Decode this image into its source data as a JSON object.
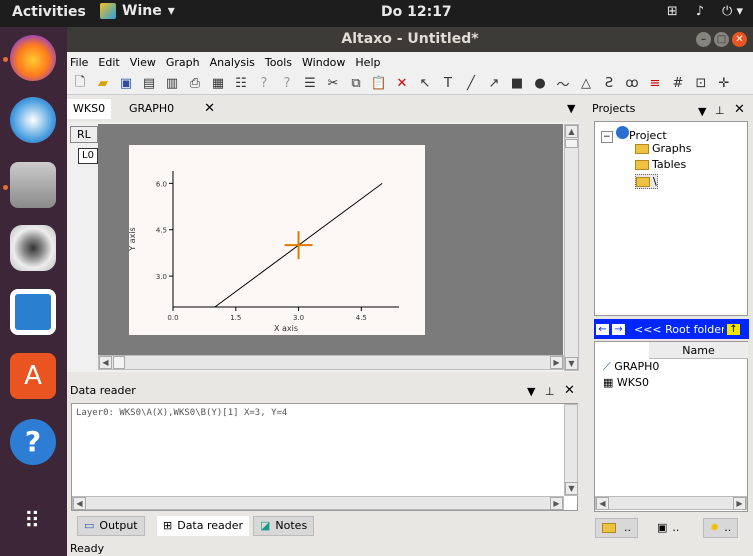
{
  "topbar": {
    "activities": "Activities",
    "app_name": "Wine",
    "clock": "Do 12:17"
  },
  "window": {
    "title": "Altaxo - Untitled*"
  },
  "menu": [
    "File",
    "Edit",
    "View",
    "Graph",
    "Analysis",
    "Tools",
    "Window",
    "Help"
  ],
  "doc_tabs": {
    "tab1": "WKS0",
    "tab2": "GRAPH0",
    "close": "✕"
  },
  "layer_buttons": {
    "rl": "RL",
    "l0": "L0"
  },
  "chart_data": {
    "type": "line",
    "series": [
      {
        "x": [
          1.0,
          5.0
        ],
        "y": [
          2.0,
          6.0
        ]
      }
    ],
    "xlabel": "X axis",
    "ylabel": "Y axis",
    "xticks": [
      "0.0",
      "1.5",
      "3.0",
      "4.5"
    ],
    "yticks": [
      "6.0",
      "4.5",
      "3.0"
    ],
    "xlim": [
      0,
      5.4
    ],
    "ylim": [
      2,
      6.4
    ],
    "cursor": {
      "x": 3,
      "y": 4
    },
    "line_color": "#000000",
    "cursor_color": "#e07a00"
  },
  "data_reader": {
    "title": "Data reader",
    "text": "Layer0: WKS0\\A(X),WKS0\\B(Y)[1] X=3, Y=4"
  },
  "bottom_tabs": [
    "Output",
    "Data reader",
    "Notes"
  ],
  "projects": {
    "title": "Projects",
    "tree": [
      "Project",
      "Graphs",
      "Tables",
      "\\"
    ],
    "root_folder": "<<< Root folder...",
    "name_header": "Name",
    "items": [
      "GRAPH0",
      "WKS0"
    ]
  },
  "right_tabs": [
    "..",
    "..",
    ".."
  ],
  "status": "Ready"
}
